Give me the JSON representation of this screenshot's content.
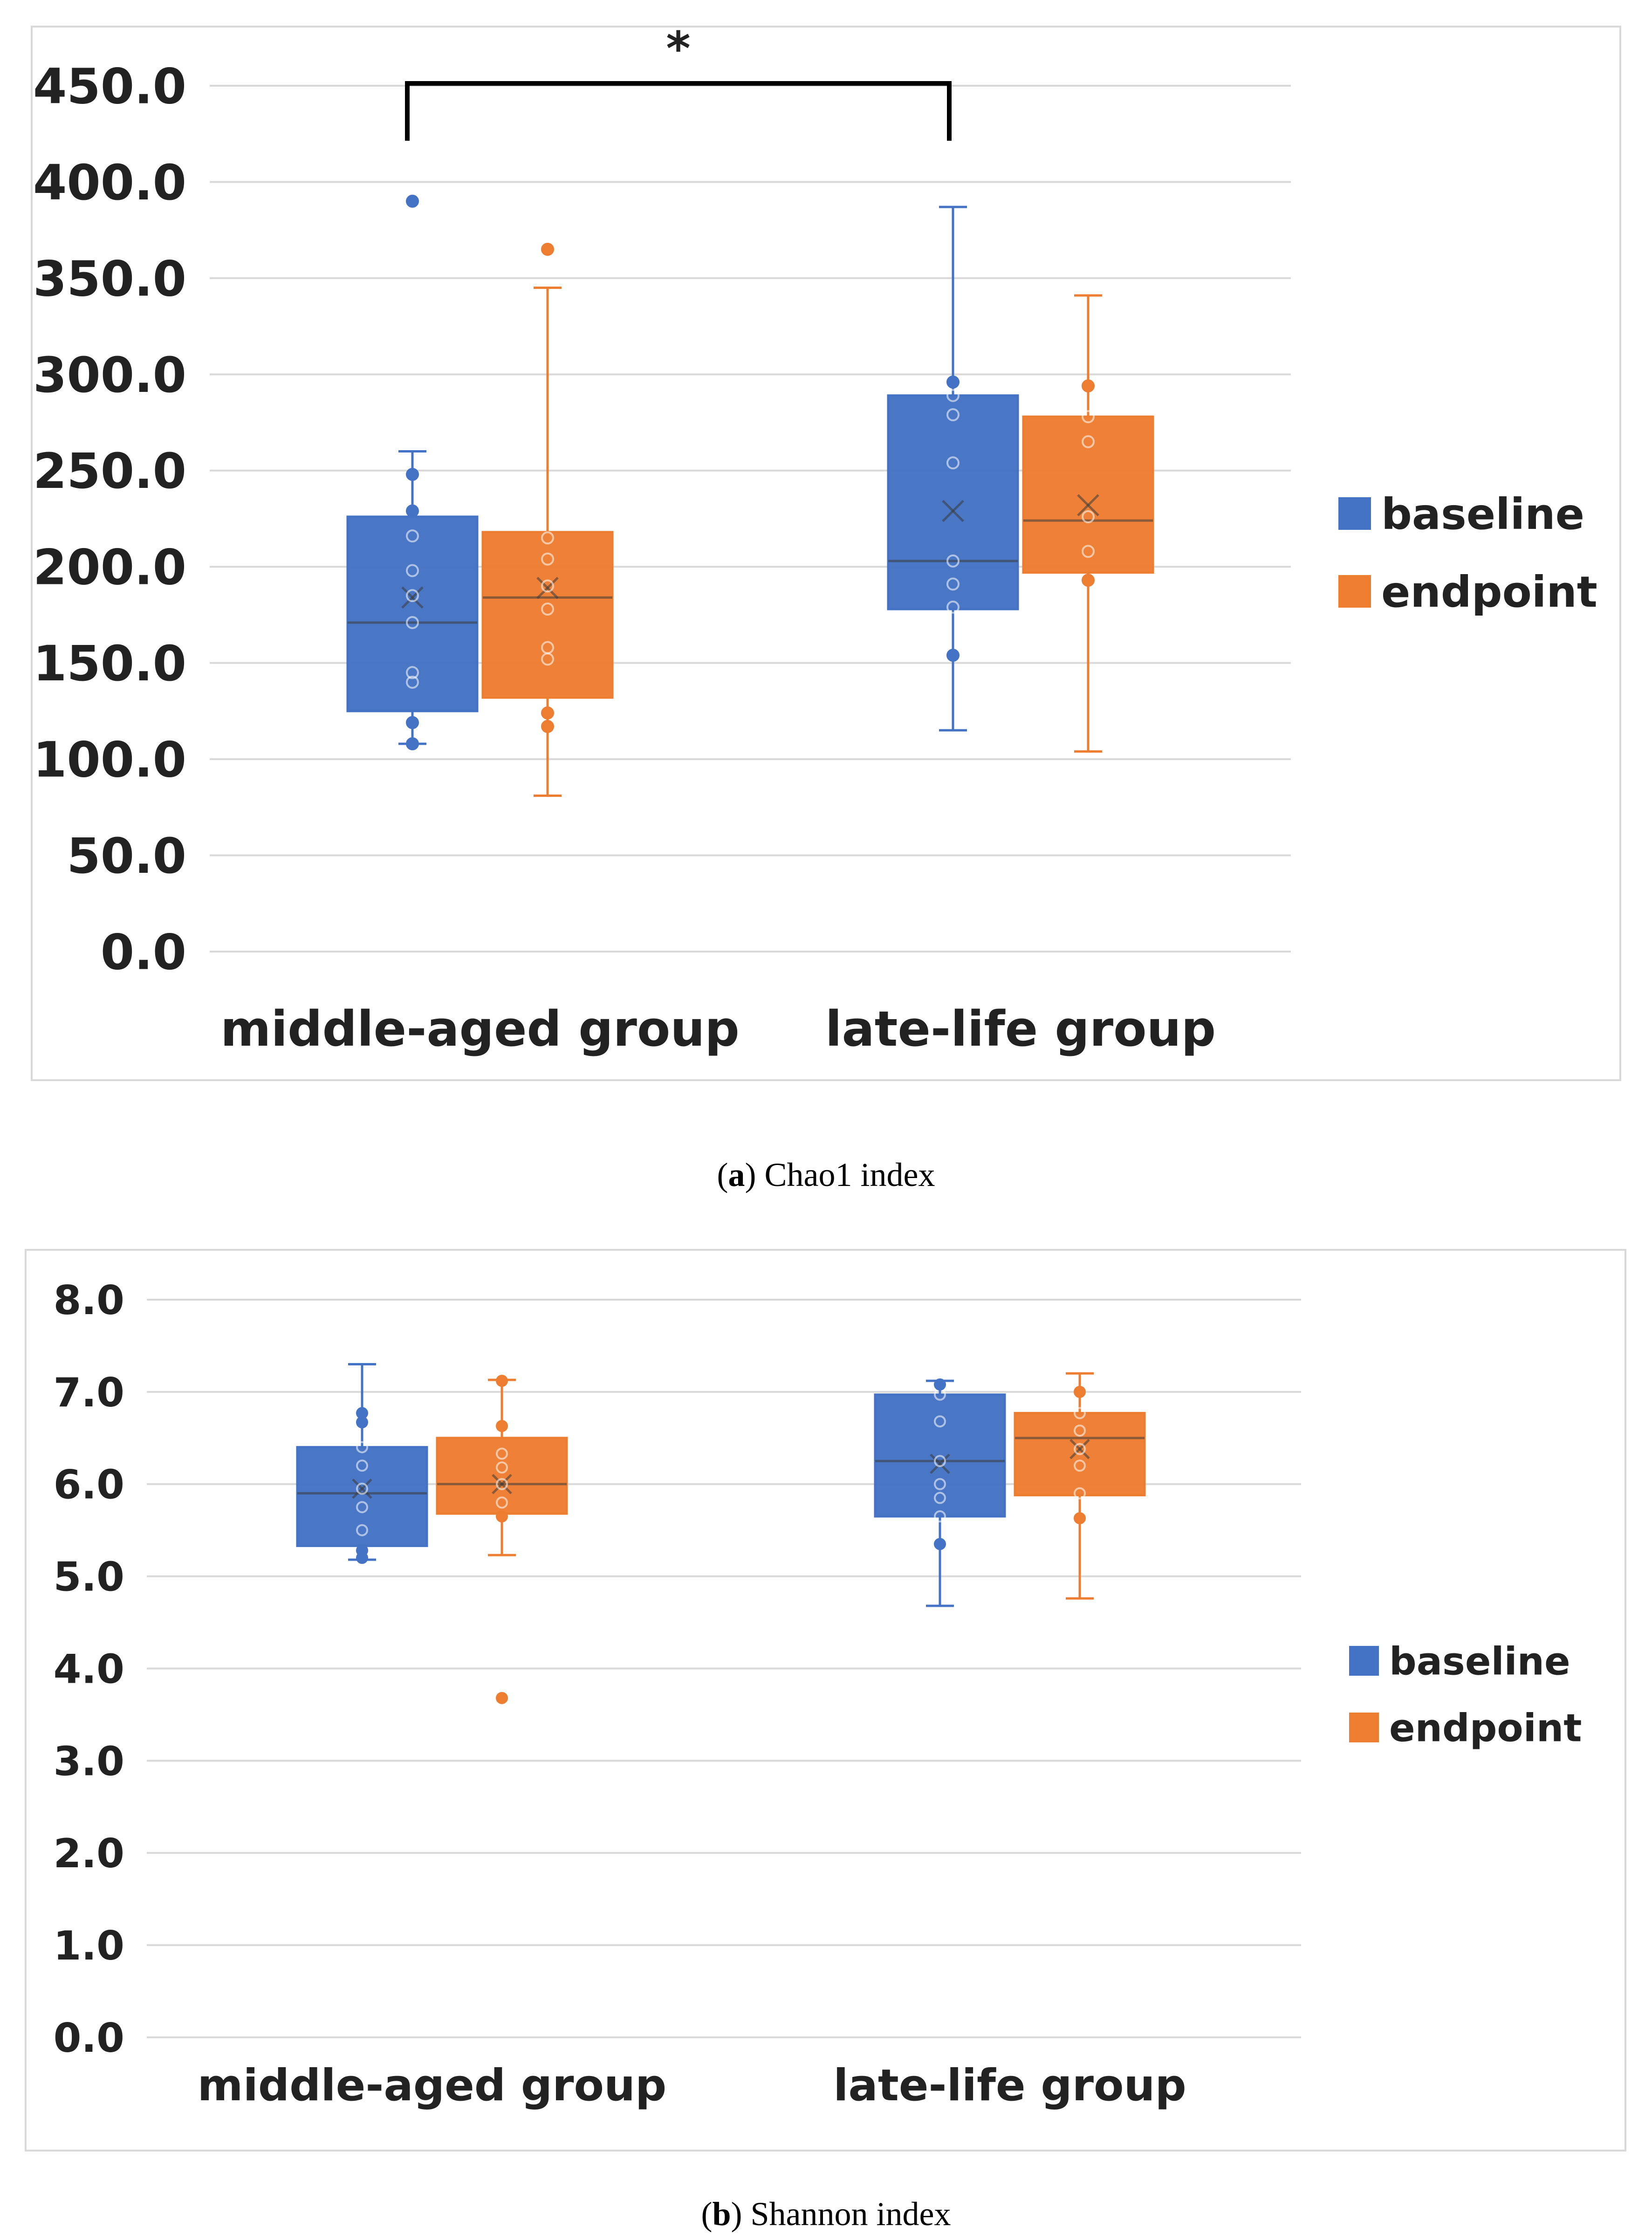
{
  "colors": {
    "baseline": "#4472C4",
    "endpoint": "#ED7D31",
    "grid": "#d9d9d9",
    "text": "#222222"
  },
  "chart_data": [
    {
      "type": "box",
      "title": "Chao1 index",
      "caption_letter": "a",
      "caption_text": " Chao1 index",
      "ylim": [
        0,
        450
      ],
      "y_ticks": [
        0,
        50,
        100,
        150,
        200,
        250,
        300,
        350,
        400,
        450
      ],
      "y_tick_labels": [
        "0.0",
        "50.0",
        "100.0",
        "150.0",
        "200.0",
        "250.0",
        "300.0",
        "350.0",
        "400.0",
        "450.0"
      ],
      "categories": [
        "middle-aged group",
        "late-life group"
      ],
      "legend": [
        "baseline",
        "endpoint"
      ],
      "significance": {
        "label": "*",
        "between": [
          "middle-aged group baseline",
          "late-life group baseline"
        ]
      },
      "series": [
        {
          "name": "baseline",
          "boxes": [
            {
              "category": "middle-aged group",
              "min": 108,
              "q1": 125,
              "median": 171,
              "q3": 226,
              "max": 260,
              "mean": 184,
              "points": [
                108,
                119,
                140,
                145,
                171,
                185,
                198,
                216,
                229,
                248,
                390
              ]
            },
            {
              "category": "late-life group",
              "min": 115,
              "q1": 178,
              "median": 203,
              "q3": 289,
              "max": 387,
              "mean": 229,
              "points": [
                154,
                179,
                191,
                203,
                254,
                279,
                289,
                296
              ]
            }
          ]
        },
        {
          "name": "endpoint",
          "boxes": [
            {
              "category": "middle-aged group",
              "min": 81,
              "q1": 132,
              "median": 184,
              "q3": 218,
              "max": 345,
              "mean": 189,
              "points": [
                117,
                124,
                152,
                158,
                178,
                190,
                204,
                215,
                365
              ]
            },
            {
              "category": "late-life group",
              "min": 104,
              "q1": 197,
              "median": 224,
              "q3": 278,
              "max": 341,
              "mean": 232,
              "points": [
                193,
                208,
                226,
                265,
                278,
                294
              ]
            }
          ]
        }
      ]
    },
    {
      "type": "box",
      "title": "Shannon index",
      "caption_letter": "b",
      "caption_text": " Shannon index",
      "ylim": [
        0,
        8
      ],
      "y_ticks": [
        0,
        1,
        2,
        3,
        4,
        5,
        6,
        7,
        8
      ],
      "y_tick_labels": [
        "0.0",
        "1.0",
        "2.0",
        "3.0",
        "4.0",
        "5.0",
        "6.0",
        "7.0",
        "8.0"
      ],
      "categories": [
        "middle-aged group",
        "late-life group"
      ],
      "legend": [
        "baseline",
        "endpoint"
      ],
      "series": [
        {
          "name": "baseline",
          "boxes": [
            {
              "category": "middle-aged group",
              "min": 5.18,
              "q1": 5.33,
              "median": 5.9,
              "q3": 6.4,
              "max": 7.3,
              "mean": 5.95,
              "points": [
                5.2,
                5.28,
                5.5,
                5.75,
                5.95,
                6.2,
                6.4,
                6.67,
                6.77
              ]
            },
            {
              "category": "late-life group",
              "min": 4.68,
              "q1": 5.65,
              "median": 6.25,
              "q3": 6.97,
              "max": 7.12,
              "mean": 6.22,
              "points": [
                5.35,
                5.65,
                5.85,
                6.0,
                6.25,
                6.68,
                6.97,
                7.08
              ]
            }
          ]
        },
        {
          "name": "endpoint",
          "boxes": [
            {
              "category": "middle-aged group",
              "min": 5.23,
              "q1": 5.68,
              "median": 6.0,
              "q3": 6.5,
              "max": 7.13,
              "mean": 6.0,
              "points": [
                3.68,
                5.65,
                5.8,
                6.0,
                6.18,
                6.33,
                6.63,
                7.12
              ]
            },
            {
              "category": "late-life group",
              "min": 4.76,
              "q1": 5.88,
              "median": 6.5,
              "q3": 6.77,
              "max": 7.2,
              "mean": 6.38,
              "points": [
                5.63,
                5.9,
                6.2,
                6.38,
                6.58,
                6.77,
                7.0
              ]
            }
          ]
        }
      ]
    }
  ]
}
